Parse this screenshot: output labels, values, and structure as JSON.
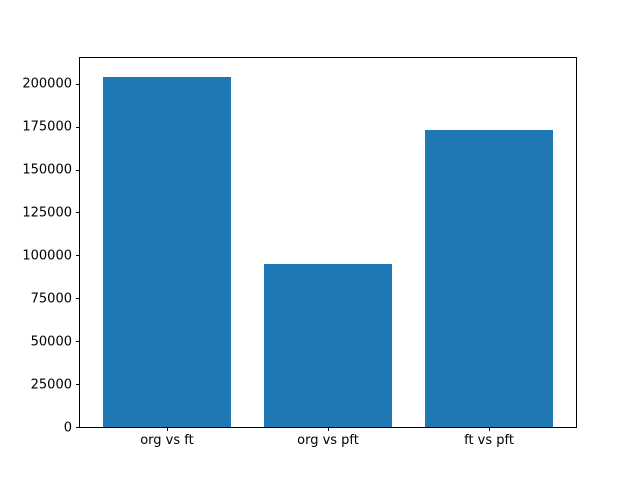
{
  "chart_data": {
    "type": "bar",
    "categories": [
      "org vs ft",
      "org vs pft",
      "ft vs pft"
    ],
    "values": [
      204000,
      95000,
      173000
    ],
    "title": "",
    "xlabel": "",
    "ylabel": "",
    "ylim": [
      0,
      215000
    ],
    "yticks": [
      0,
      25000,
      50000,
      75000,
      100000,
      125000,
      150000,
      175000,
      200000
    ],
    "bar_color": "#1f77b4",
    "grid": false,
    "legend_position": "none"
  },
  "colors": {
    "bar": "#1f77b4",
    "background": "#ffffff",
    "axis": "#000000",
    "tick_text": "#000000"
  }
}
